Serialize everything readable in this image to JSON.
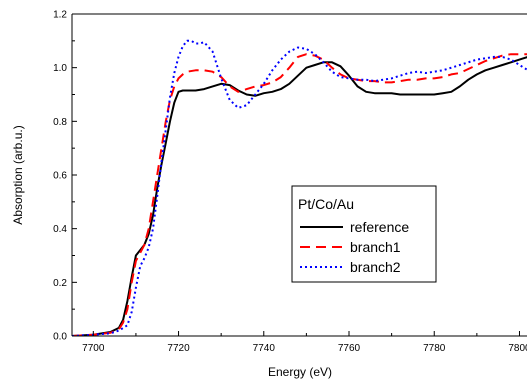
{
  "chart_data": {
    "type": "line",
    "title": "",
    "xlabel": "Energy (eV)",
    "ylabel": "Absorption (arb.u.)",
    "xlim": [
      7695,
      7802
    ],
    "ylim": [
      0.0,
      1.2
    ],
    "x_ticks": [
      7700,
      7720,
      7740,
      7760,
      7780,
      7800
    ],
    "x_tick_labels": [
      "7700",
      "7720",
      "7740",
      "7760",
      "7780",
      "7800"
    ],
    "y_ticks": [
      0.0,
      0.2,
      0.4,
      0.6,
      0.8,
      1.0,
      1.2
    ],
    "y_tick_labels": [
      "0.0",
      "0.2",
      "0.4",
      "0.6",
      "0.8",
      "1.0",
      "1.2"
    ],
    "grid": false,
    "legend": {
      "title": "Pt/Co/Au",
      "placement": "center-right"
    },
    "series": [
      {
        "name": "reference",
        "color": "#000000",
        "dash": "solid",
        "x": [
          7695,
          7700,
          7704,
          7706,
          7707,
          7708,
          7709,
          7710,
          7711,
          7712,
          7713,
          7714,
          7715,
          7716,
          7717,
          7718,
          7719,
          7720,
          7721,
          7722,
          7724,
          7726,
          7728,
          7730,
          7732,
          7734,
          7736,
          7738,
          7740,
          7742,
          7744,
          7746,
          7748,
          7750,
          7752,
          7754,
          7756,
          7758,
          7760,
          7762,
          7764,
          7766,
          7768,
          7770,
          7772,
          7774,
          7776,
          7778,
          7780,
          7782,
          7784,
          7786,
          7788,
          7790,
          7792,
          7794,
          7796,
          7798,
          7800,
          7802
        ],
        "y": [
          0.0,
          0.005,
          0.015,
          0.03,
          0.06,
          0.13,
          0.22,
          0.3,
          0.32,
          0.34,
          0.38,
          0.45,
          0.55,
          0.64,
          0.72,
          0.8,
          0.87,
          0.91,
          0.915,
          0.915,
          0.915,
          0.92,
          0.93,
          0.94,
          0.935,
          0.915,
          0.9,
          0.895,
          0.905,
          0.91,
          0.92,
          0.94,
          0.97,
          1.0,
          1.01,
          1.02,
          1.02,
          1.005,
          0.97,
          0.93,
          0.91,
          0.905,
          0.905,
          0.905,
          0.9,
          0.9,
          0.9,
          0.9,
          0.9,
          0.905,
          0.91,
          0.93,
          0.955,
          0.975,
          0.99,
          1.0,
          1.01,
          1.02,
          1.03,
          1.04
        ]
      },
      {
        "name": "branch1",
        "color": "#ff0000",
        "dash": "dashed",
        "x": [
          7695,
          7700,
          7704,
          7706,
          7707,
          7708,
          7709,
          7710,
          7711,
          7712,
          7713,
          7714,
          7715,
          7716,
          7717,
          7718,
          7719,
          7720,
          7721,
          7722,
          7724,
          7726,
          7728,
          7730,
          7732,
          7734,
          7736,
          7738,
          7740,
          7742,
          7744,
          7746,
          7748,
          7750,
          7752,
          7754,
          7756,
          7758,
          7760,
          7762,
          7764,
          7766,
          7768,
          7770,
          7772,
          7774,
          7776,
          7778,
          7780,
          7782,
          7784,
          7786,
          7788,
          7790,
          7792,
          7794,
          7796,
          7798,
          7800,
          7802
        ],
        "y": [
          0.0,
          0.005,
          0.012,
          0.025,
          0.05,
          0.1,
          0.2,
          0.28,
          0.31,
          0.34,
          0.4,
          0.5,
          0.6,
          0.7,
          0.8,
          0.88,
          0.93,
          0.96,
          0.975,
          0.985,
          0.99,
          0.99,
          0.985,
          0.965,
          0.93,
          0.91,
          0.92,
          0.93,
          0.935,
          0.945,
          0.965,
          1.0,
          1.04,
          1.05,
          1.045,
          1.03,
          1.0,
          0.975,
          0.96,
          0.955,
          0.95,
          0.95,
          0.945,
          0.945,
          0.95,
          0.955,
          0.955,
          0.96,
          0.96,
          0.965,
          0.975,
          0.98,
          0.995,
          1.01,
          1.025,
          1.035,
          1.045,
          1.05,
          1.05,
          1.05
        ]
      },
      {
        "name": "branch2",
        "color": "#0000ff",
        "dash": "dotted",
        "x": [
          7695,
          7700,
          7704,
          7706,
          7708,
          7709,
          7710,
          7711,
          7712,
          7713,
          7714,
          7715,
          7716,
          7717,
          7718,
          7719,
          7720,
          7721,
          7722,
          7723,
          7724,
          7725,
          7726,
          7728,
          7730,
          7732,
          7734,
          7736,
          7738,
          7740,
          7742,
          7744,
          7746,
          7748,
          7750,
          7752,
          7754,
          7756,
          7758,
          7760,
          7762,
          7764,
          7766,
          7768,
          7770,
          7772,
          7774,
          7776,
          7778,
          7780,
          7782,
          7784,
          7786,
          7788,
          7790,
          7792,
          7794,
          7796,
          7798,
          7800,
          7802
        ],
        "y": [
          0.0,
          0.005,
          0.01,
          0.02,
          0.04,
          0.09,
          0.18,
          0.26,
          0.29,
          0.33,
          0.4,
          0.52,
          0.65,
          0.77,
          0.89,
          0.98,
          1.04,
          1.08,
          1.1,
          1.1,
          1.09,
          1.09,
          1.095,
          1.06,
          0.96,
          0.88,
          0.85,
          0.86,
          0.9,
          0.94,
          0.99,
          1.03,
          1.06,
          1.075,
          1.07,
          1.05,
          1.02,
          0.985,
          0.965,
          0.96,
          0.955,
          0.955,
          0.95,
          0.955,
          0.96,
          0.97,
          0.98,
          0.985,
          0.98,
          0.985,
          0.99,
          1.0,
          1.01,
          1.02,
          1.03,
          1.035,
          1.04,
          1.04,
          1.03,
          1.01,
          0.99
        ]
      }
    ]
  }
}
